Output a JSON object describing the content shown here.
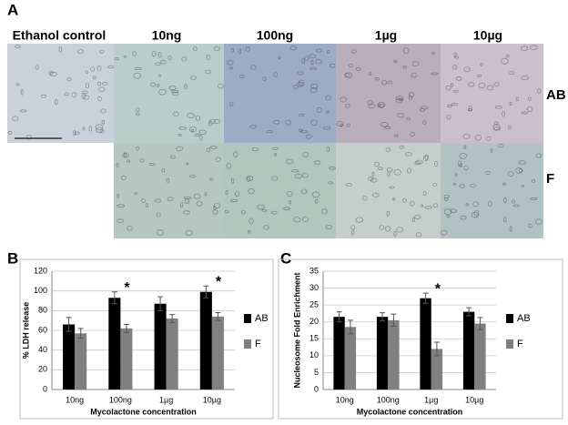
{
  "figure": {
    "panel_labels": [
      "A",
      "B",
      "C"
    ],
    "column_labels": [
      "Ethanol control",
      "10ng",
      "100ng",
      "1µg",
      "10µg"
    ],
    "row_labels": [
      "AB",
      "F"
    ]
  },
  "chart_data": [
    {
      "type": "bar",
      "xlabel": "Mycolactone concentration",
      "ylabel": "% LDH release",
      "categories": [
        "10ng",
        "100ng",
        "1µg",
        "10µg"
      ],
      "series": [
        {
          "name": "AB",
          "color": "#000000",
          "values": [
            66,
            93,
            87,
            99
          ],
          "errors": [
            7,
            6,
            7,
            6
          ]
        },
        {
          "name": "F",
          "color": "#808080",
          "values": [
            57,
            62,
            72,
            74
          ],
          "errors": [
            5,
            4,
            4,
            4
          ]
        }
      ],
      "ylim": [
        0,
        120
      ],
      "yticks": [
        0,
        20,
        40,
        60,
        80,
        100,
        120
      ],
      "grid": true,
      "legend": "right",
      "annotations": [
        {
          "text": "*",
          "x": "100ng"
        },
        {
          "text": "*",
          "x": "10µg"
        }
      ]
    },
    {
      "type": "bar",
      "xlabel": "Mycolactone concentration",
      "ylabel": "Nucleosome Fold Enrichment",
      "categories": [
        "10ng",
        "100ng",
        "1µg",
        "10µg"
      ],
      "series": [
        {
          "name": "AB",
          "color": "#000000",
          "values": [
            21.5,
            21.5,
            27,
            23
          ],
          "errors": [
            1.5,
            1.2,
            1.5,
            1.2
          ]
        },
        {
          "name": "F",
          "color": "#808080",
          "values": [
            18.5,
            20.5,
            12,
            19.5
          ],
          "errors": [
            2,
            1.8,
            2,
            1.8
          ]
        }
      ],
      "ylim": [
        0,
        35
      ],
      "yticks": [
        0,
        5,
        10,
        15,
        20,
        25,
        30,
        35
      ],
      "grid": true,
      "legend": "right",
      "annotations": [
        {
          "text": "*",
          "x": "1µg"
        }
      ]
    }
  ]
}
